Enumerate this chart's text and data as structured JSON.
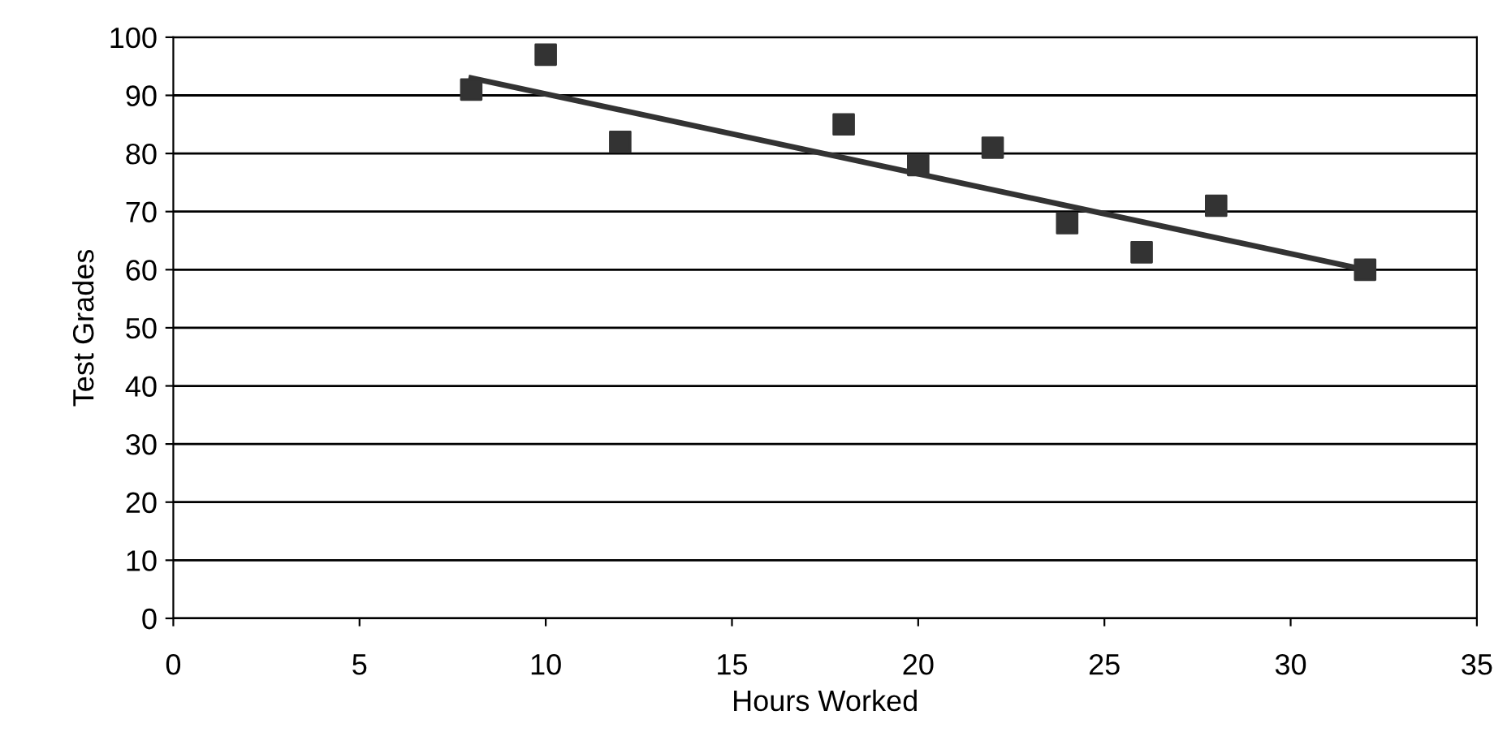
{
  "chart_data": {
    "type": "scatter",
    "xlabel": "Hours Worked",
    "ylabel": "Test Grades",
    "xlim": [
      0,
      35
    ],
    "xticks": [
      0,
      5,
      10,
      15,
      20,
      25,
      30,
      35
    ],
    "ylim": [
      0,
      100
    ],
    "yticks": [
      0,
      10,
      20,
      30,
      40,
      50,
      60,
      70,
      80,
      90,
      100
    ],
    "grid": "y",
    "marker": "square",
    "series": [
      {
        "color": "#333333",
        "x": [
          8,
          10,
          12,
          18,
          20,
          22,
          24,
          26,
          28,
          32
        ],
        "values": [
          91,
          97,
          82,
          85,
          78,
          81,
          68,
          63,
          71,
          60
        ]
      },
      {
        "type": "line",
        "color": "#333333",
        "line_style": "solid",
        "marker": "none",
        "x": [
          8,
          32
        ],
        "values": [
          93,
          60
        ]
      }
    ]
  }
}
